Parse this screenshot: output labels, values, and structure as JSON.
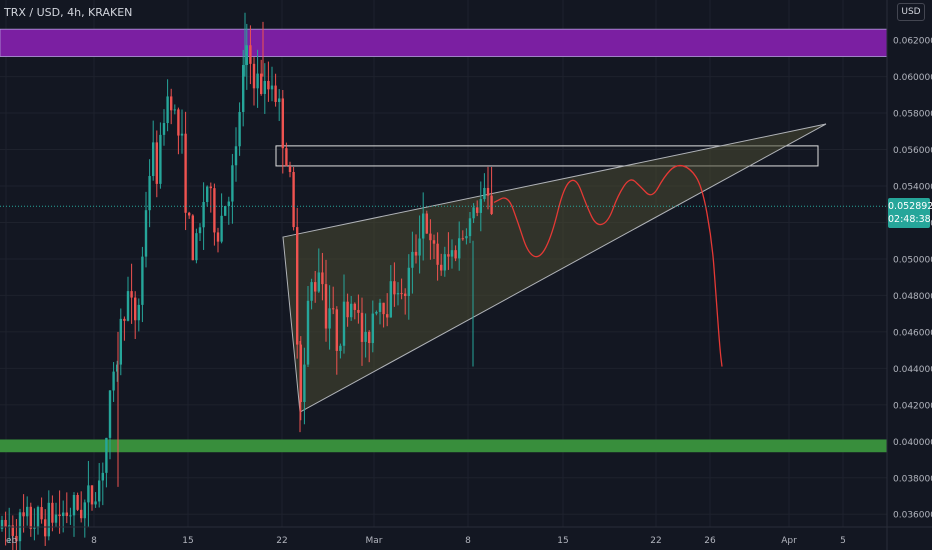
{
  "header": {
    "title": "TRX / USD, 4h, KRAKEN",
    "currency": "USD"
  },
  "price_label": {
    "price": "0.052892",
    "countdown": "02:48:38"
  },
  "colors": {
    "background": "#131722",
    "up": "#26a69a",
    "down": "#ef5350",
    "resistance": "#7b1fa2",
    "support": "#388e3c",
    "wedge_fill": "#4a4a32",
    "projection": "#e53935"
  },
  "chart_data": {
    "type": "candlestick",
    "symbol": "TRX / USD",
    "interval": "4h",
    "exchange": "KRAKEN",
    "x_tick_labels": [
      "eb",
      "8",
      "15",
      "22",
      "Mar",
      "8",
      "15",
      "22",
      "26",
      "Apr",
      "5"
    ],
    "y_ticks": [
      "0.036000",
      "0.038000",
      "0.040000",
      "0.042000",
      "0.044000",
      "0.046000",
      "0.048000",
      "0.050000",
      "0.052000",
      "0.054000",
      "0.056000",
      "0.058000",
      "0.060000",
      "0.062000"
    ],
    "ylim": [
      0.0353,
      0.0642
    ],
    "current_price": 0.052892,
    "price_path": [
      [
        0,
        0.0352
      ],
      [
        35,
        0.0356
      ],
      [
        60,
        0.036
      ],
      [
        85,
        0.0365
      ],
      [
        95,
        0.0372
      ],
      [
        100,
        0.038
      ],
      [
        105,
        0.0395
      ],
      [
        110,
        0.042
      ],
      [
        116,
        0.044
      ],
      [
        122,
        0.047
      ],
      [
        128,
        0.048
      ],
      [
        134,
        0.0465
      ],
      [
        140,
        0.048
      ],
      [
        146,
        0.053
      ],
      [
        152,
        0.056
      ],
      [
        158,
        0.0545
      ],
      [
        164,
        0.058
      ],
      [
        170,
        0.0595
      ],
      [
        176,
        0.0575
      ],
      [
        182,
        0.056
      ],
      [
        188,
        0.052
      ],
      [
        194,
        0.05
      ],
      [
        200,
        0.0515
      ],
      [
        206,
        0.0545
      ],
      [
        212,
        0.0525
      ],
      [
        218,
        0.0515
      ],
      [
        224,
        0.053
      ],
      [
        230,
        0.054
      ],
      [
        236,
        0.0555
      ],
      [
        242,
        0.06
      ],
      [
        248,
        0.0612
      ],
      [
        254,
        0.06
      ],
      [
        260,
        0.0595
      ],
      [
        266,
        0.059
      ],
      [
        272,
        0.06
      ],
      [
        278,
        0.0585
      ],
      [
        284,
        0.0565
      ],
      [
        290,
        0.054
      ],
      [
        294,
        0.051
      ],
      [
        298,
        0.045
      ],
      [
        302,
        0.042
      ],
      [
        306,
        0.0455
      ],
      [
        310,
        0.049
      ],
      [
        314,
        0.048
      ],
      [
        318,
        0.05
      ],
      [
        322,
        0.049
      ],
      [
        326,
        0.047
      ],
      [
        330,
        0.0475
      ],
      [
        336,
        0.0455
      ],
      [
        342,
        0.0465
      ],
      [
        348,
        0.0475
      ],
      [
        354,
        0.048
      ],
      [
        360,
        0.046
      ],
      [
        366,
        0.045
      ],
      [
        372,
        0.047
      ],
      [
        378,
        0.048
      ],
      [
        384,
        0.0475
      ],
      [
        390,
        0.048
      ],
      [
        396,
        0.049
      ],
      [
        402,
        0.0475
      ],
      [
        408,
        0.049
      ],
      [
        414,
        0.05
      ],
      [
        418,
        0.0512
      ],
      [
        422,
        0.0528
      ],
      [
        426,
        0.052
      ],
      [
        430,
        0.0505
      ],
      [
        436,
        0.05
      ],
      [
        442,
        0.0495
      ],
      [
        448,
        0.05
      ],
      [
        454,
        0.0505
      ],
      [
        460,
        0.051
      ],
      [
        466,
        0.0518
      ],
      [
        472,
        0.0522
      ],
      [
        478,
        0.053
      ],
      [
        484,
        0.0533
      ],
      [
        490,
        0.0529
      ],
      [
        494,
        0.053
      ]
    ],
    "zones": [
      {
        "name": "resistance",
        "y_low": 0.0611,
        "y_high": 0.0626
      },
      {
        "name": "support",
        "y_low": 0.0394,
        "y_high": 0.0401
      }
    ],
    "box": {
      "y_low": 0.0551,
      "y_high": 0.0562
    },
    "wedge": [
      [
        283,
        0.0512
      ],
      [
        826,
        0.0574
      ],
      [
        300,
        0.0416
      ]
    ],
    "projection": [
      [
        494,
        0.0531
      ],
      [
        508,
        0.0535
      ],
      [
        518,
        0.052
      ],
      [
        528,
        0.0503
      ],
      [
        540,
        0.05
      ],
      [
        552,
        0.0513
      ],
      [
        564,
        0.054
      ],
      [
        576,
        0.0545
      ],
      [
        586,
        0.053
      ],
      [
        596,
        0.0518
      ],
      [
        608,
        0.052
      ],
      [
        618,
        0.0535
      ],
      [
        630,
        0.0545
      ],
      [
        640,
        0.054
      ],
      [
        652,
        0.0533
      ],
      [
        664,
        0.0545
      ],
      [
        676,
        0.0552
      ],
      [
        690,
        0.055
      ],
      [
        702,
        0.054
      ],
      [
        712,
        0.051
      ],
      [
        716,
        0.048
      ],
      [
        720,
        0.045
      ],
      [
        722,
        0.0441
      ]
    ]
  }
}
